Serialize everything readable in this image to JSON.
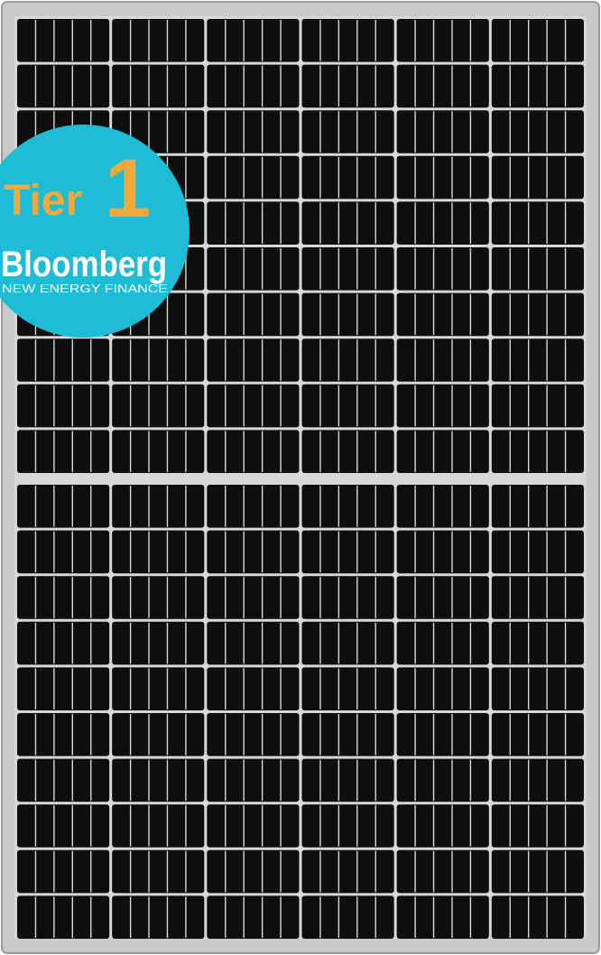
{
  "badge": {
    "tier_word": "Tier",
    "tier_number": "1",
    "brand": "Bloomberg",
    "subtitle": "NEW ENERGY FINANCE",
    "colors": {
      "circle": "#1fbcd6",
      "tier": "#f2a93b",
      "text": "#ffffff"
    }
  },
  "panel": {
    "colors": {
      "frame": "#c9c9c9",
      "frame_edge": "#9a9a9a",
      "cell": "#0e0e0e",
      "grid": "#d8d8d8"
    }
  }
}
